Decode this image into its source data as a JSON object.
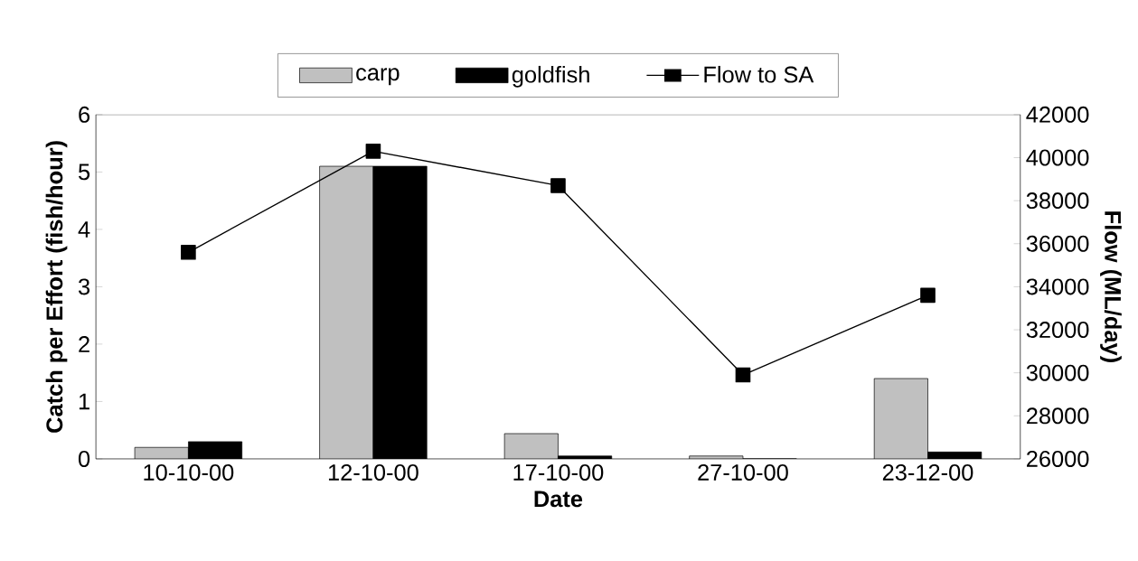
{
  "chart_data": {
    "type": "bar",
    "xlabel": "Date",
    "ylabel": "Catch per Effort (fish/hour)",
    "y2label": "Flow (ML/day)",
    "categories": [
      "10-10-00",
      "12-10-00",
      "17-10-00",
      "27-10-00",
      "23-12-00"
    ],
    "series": [
      {
        "name": "carp",
        "color": "#c0c0c0",
        "values": [
          0.2,
          5.1,
          0.44,
          0.05,
          1.4
        ]
      },
      {
        "name": "goldfish",
        "color": "#000000",
        "values": [
          0.3,
          5.1,
          0.05,
          0,
          0.12
        ]
      },
      {
        "name": "Flow to SA",
        "type": "line",
        "axis": "y2",
        "color": "#000000",
        "values": [
          35600,
          40300,
          38700,
          29900,
          33600
        ]
      }
    ],
    "ylim": [
      0,
      6
    ],
    "yticks": [
      0,
      1,
      2,
      3,
      4,
      5,
      6
    ],
    "y2lim": [
      26000,
      42000
    ],
    "y2ticks": [
      26000,
      28000,
      30000,
      32000,
      34000,
      36000,
      38000,
      40000,
      42000
    ],
    "legend": "top",
    "marker": "square",
    "grid": false
  }
}
